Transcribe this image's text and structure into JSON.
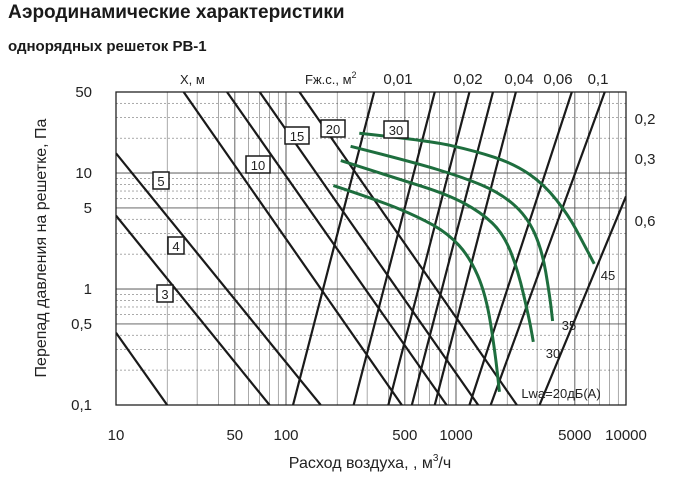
{
  "title": "Аэродинамические характеристики",
  "subtitle": "однорядных решеток РВ-1",
  "chart_data": {
    "type": "line",
    "scale": "log-log",
    "xlabel_parts": [
      "Расход воздуха, , м",
      "3",
      "/ч"
    ],
    "ylabel": "Перепад давления на решетке, Па",
    "xlim": [
      10,
      10000
    ],
    "ylim": [
      0.1,
      50
    ],
    "x_ticks": [
      10,
      50,
      100,
      500,
      1000,
      5000,
      10000
    ],
    "x_tick_labels": [
      "10",
      "50",
      "100",
      "500",
      "1000",
      "5000",
      "10000"
    ],
    "y_ticks": [
      0.1,
      0.5,
      1,
      5,
      10,
      50
    ],
    "y_tick_labels": [
      "0,1",
      "0,5",
      "1",
      "5",
      "10",
      "50"
    ],
    "header_labels": {
      "throw": "X, м",
      "area_base": "Fж.с., м",
      "area_sup": "2"
    },
    "throw_lines": {
      "name": "X, м",
      "labels": [
        "3",
        "4",
        "5",
        "10",
        "15",
        "20",
        "30"
      ],
      "points": [
        [
          [
            10,
            0.42
          ],
          [
            20,
            0.1
          ]
        ],
        [
          [
            10,
            4.3
          ],
          [
            80,
            0.1
          ]
        ],
        [
          [
            10,
            14.8
          ],
          [
            160,
            0.1
          ]
        ],
        [
          [
            25,
            50
          ],
          [
            480,
            0.1
          ]
        ],
        [
          [
            45,
            50
          ],
          [
            880,
            0.1
          ]
        ],
        [
          [
            70,
            50
          ],
          [
            1350,
            0.1
          ]
        ],
        [
          [
            120,
            50
          ],
          [
            2280,
            0.1
          ]
        ]
      ]
    },
    "area_lines": {
      "name": "Fж.с., м2",
      "labels": [
        "0,01",
        "0,02",
        "0,04",
        "0,06",
        "0,1",
        "0,2",
        "0,3",
        "0,6"
      ],
      "points": [
        [
          [
            110,
            0.1
          ],
          [
            330,
            50
          ]
        ],
        [
          [
            250,
            0.1
          ],
          [
            750,
            50
          ]
        ],
        [
          [
            400,
            0.1
          ],
          [
            1200,
            50
          ]
        ],
        [
          [
            550,
            0.1
          ],
          [
            1650,
            50
          ]
        ],
        [
          [
            750,
            0.1
          ],
          [
            2250,
            50
          ]
        ],
        [
          [
            1200,
            0.1
          ],
          [
            4800,
            50
          ]
        ],
        [
          [
            1600,
            0.1
          ],
          [
            7500,
            50
          ]
        ],
        [
          [
            3100,
            0.1
          ],
          [
            10000,
            6.3
          ]
        ]
      ]
    },
    "noise_curves": {
      "name": "Lwa",
      "series": [
        {
          "label": "Lwa=20дБ(A)",
          "points": [
            [
              190,
              7.8
            ],
            [
              350,
              5.8
            ],
            [
              600,
              4.2
            ],
            [
              900,
              3.0
            ],
            [
              1200,
              1.9
            ],
            [
              1500,
              0.9
            ],
            [
              1700,
              0.28
            ],
            [
              1800,
              0.13
            ]
          ]
        },
        {
          "label": "30",
          "points": [
            [
              210,
              12.8
            ],
            [
              450,
              9.0
            ],
            [
              900,
              6.5
            ],
            [
              1400,
              4.6
            ],
            [
              1900,
              3.0
            ],
            [
              2300,
              1.5
            ],
            [
              2700,
              0.55
            ],
            [
              2850,
              0.35
            ]
          ]
        },
        {
          "label": "35",
          "points": [
            [
              240,
              17.0
            ],
            [
              550,
              12.5
            ],
            [
              1100,
              9.2
            ],
            [
              1800,
              6.8
            ],
            [
              2600,
              4.3
            ],
            [
              3200,
              2.2
            ],
            [
              3550,
              0.9
            ],
            [
              3700,
              0.53
            ]
          ]
        },
        {
          "label": "45",
          "points": [
            [
              270,
              22.0
            ],
            [
              700,
              19.0
            ],
            [
              1300,
              15.5
            ],
            [
              2200,
              12.0
            ],
            [
              3300,
              8.0
            ],
            [
              4600,
              4.3
            ],
            [
              5600,
              2.5
            ],
            [
              6500,
              1.65
            ]
          ]
        }
      ]
    },
    "grid": true,
    "colors": {
      "lines": "#1a1a1a",
      "curves": "#1e6e3e",
      "grid": "#555555",
      "background": "#ffffff"
    }
  }
}
